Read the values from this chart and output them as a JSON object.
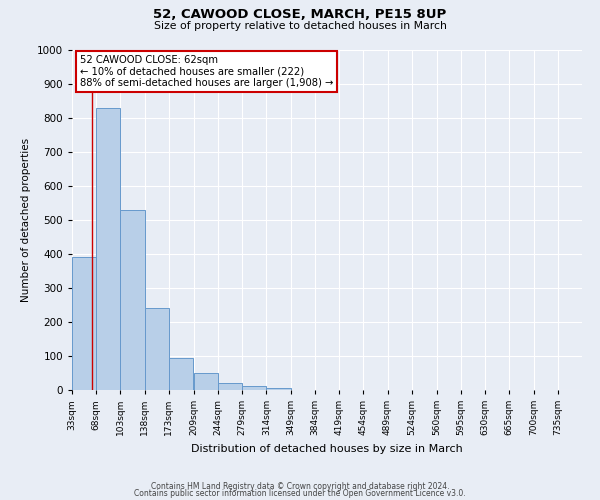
{
  "title": "52, CAWOOD CLOSE, MARCH, PE15 8UP",
  "subtitle": "Size of property relative to detached houses in March",
  "xlabel": "Distribution of detached houses by size in March",
  "ylabel": "Number of detached properties",
  "bin_labels": [
    "33sqm",
    "68sqm",
    "103sqm",
    "138sqm",
    "173sqm",
    "209sqm",
    "244sqm",
    "279sqm",
    "314sqm",
    "349sqm",
    "384sqm",
    "419sqm",
    "454sqm",
    "489sqm",
    "524sqm",
    "560sqm",
    "595sqm",
    "630sqm",
    "665sqm",
    "700sqm",
    "735sqm"
  ],
  "bar_heights": [
    390,
    830,
    530,
    240,
    95,
    50,
    20,
    12,
    5,
    0,
    0,
    0,
    0,
    0,
    0,
    0,
    0,
    0,
    0,
    0
  ],
  "bar_color": "#b8cfe8",
  "bar_edge_color": "#6699cc",
  "background_color": "#e8edf5",
  "grid_color": "#ffffff",
  "property_line_x": 62,
  "property_line_color": "#cc0000",
  "annotation_line1": "52 CAWOOD CLOSE: 62sqm",
  "annotation_line2": "← 10% of detached houses are smaller (222)",
  "annotation_line3": "88% of semi-detached houses are larger (1,908) →",
  "annotation_box_color": "#ffffff",
  "annotation_box_edge_color": "#cc0000",
  "ylim": [
    0,
    1000
  ],
  "bin_edges": [
    33,
    68,
    103,
    138,
    173,
    209,
    244,
    279,
    314,
    349,
    384,
    419,
    454,
    489,
    524,
    560,
    595,
    630,
    665,
    700,
    735
  ],
  "footer_line1": "Contains HM Land Registry data © Crown copyright and database right 2024.",
  "footer_line2": "Contains public sector information licensed under the Open Government Licence v3.0."
}
